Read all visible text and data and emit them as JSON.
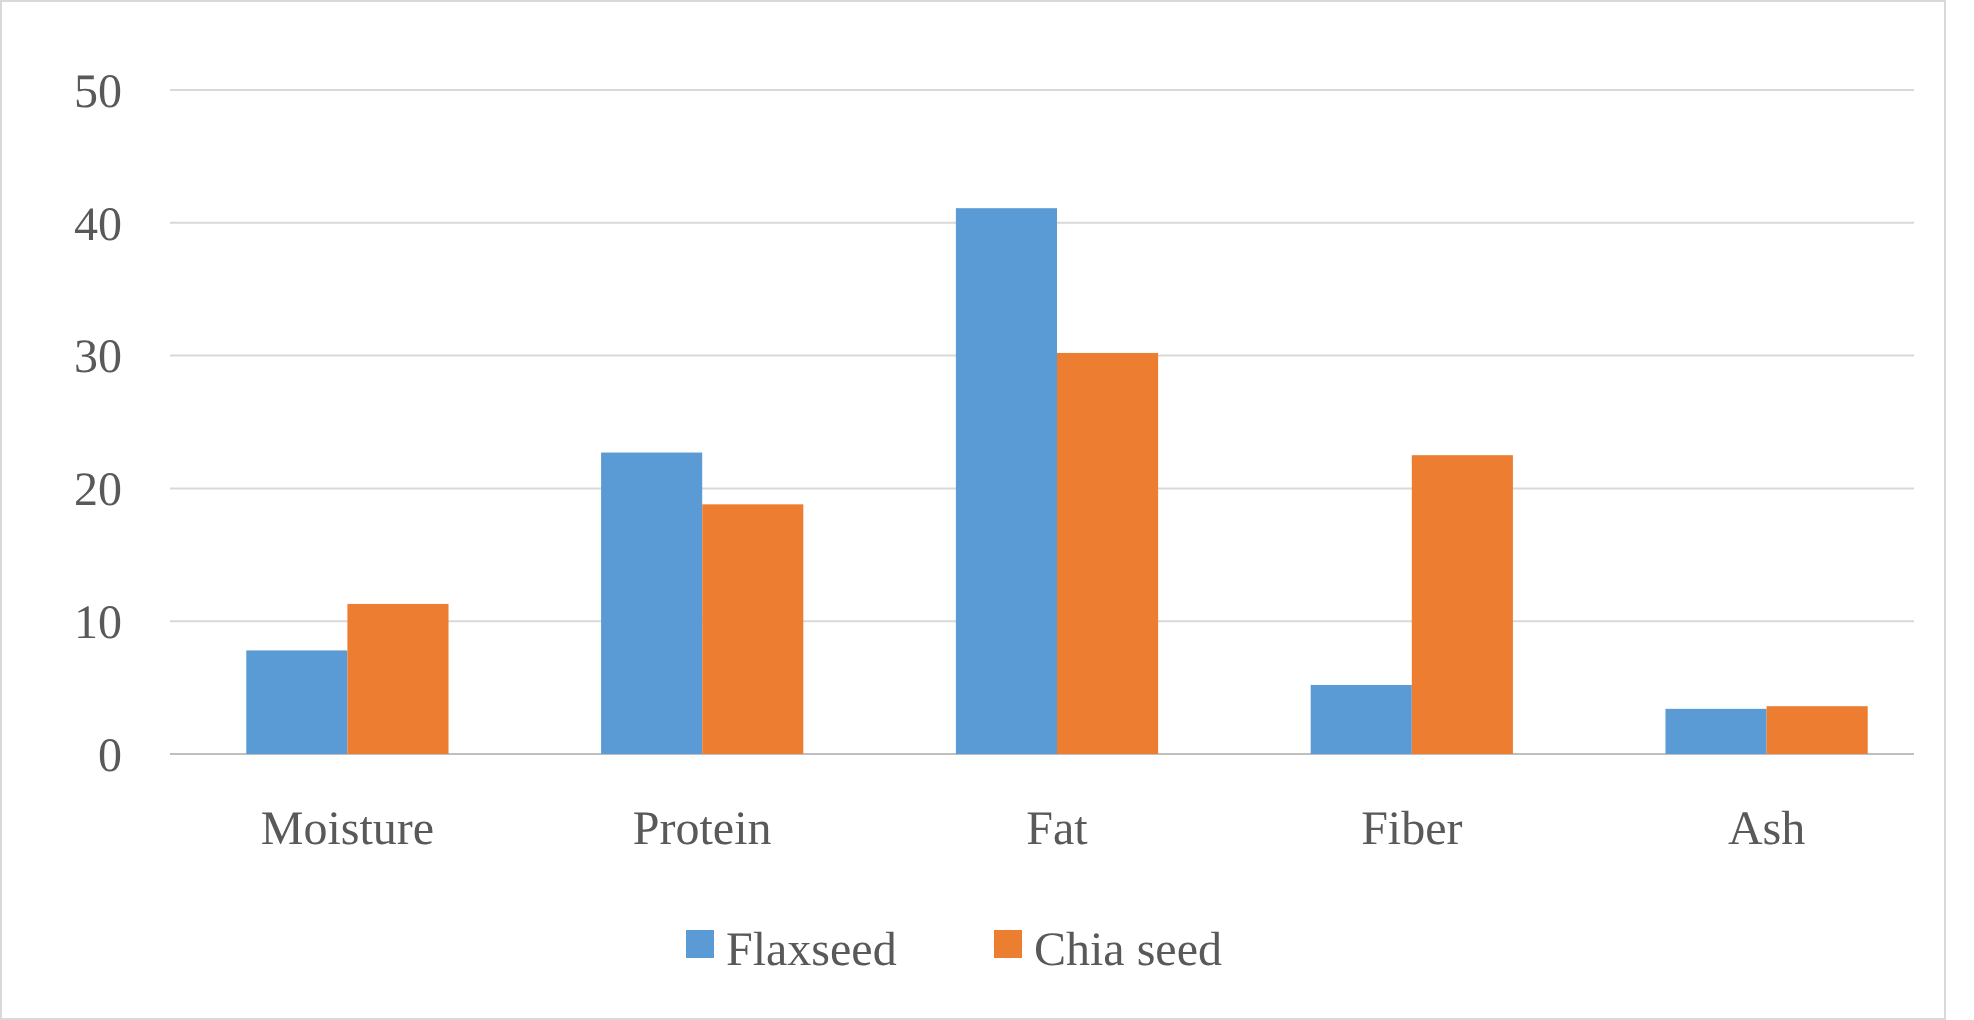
{
  "chart_data": {
    "type": "bar",
    "categories": [
      "Moisture",
      "Protein",
      "Fat",
      "Fiber",
      "Ash"
    ],
    "series": [
      {
        "name": "Flaxseed",
        "color": "#5b9bd5",
        "values": [
          7.8,
          22.7,
          41.1,
          5.2,
          3.4
        ]
      },
      {
        "name": "Chia seed",
        "color": "#ed7d31",
        "values": [
          11.3,
          18.8,
          30.2,
          22.5,
          3.6
        ]
      }
    ],
    "ylim": [
      0,
      50
    ],
    "yticks": [
      0,
      10,
      20,
      30,
      40,
      50
    ],
    "grid": "y",
    "legend": "bottom"
  }
}
